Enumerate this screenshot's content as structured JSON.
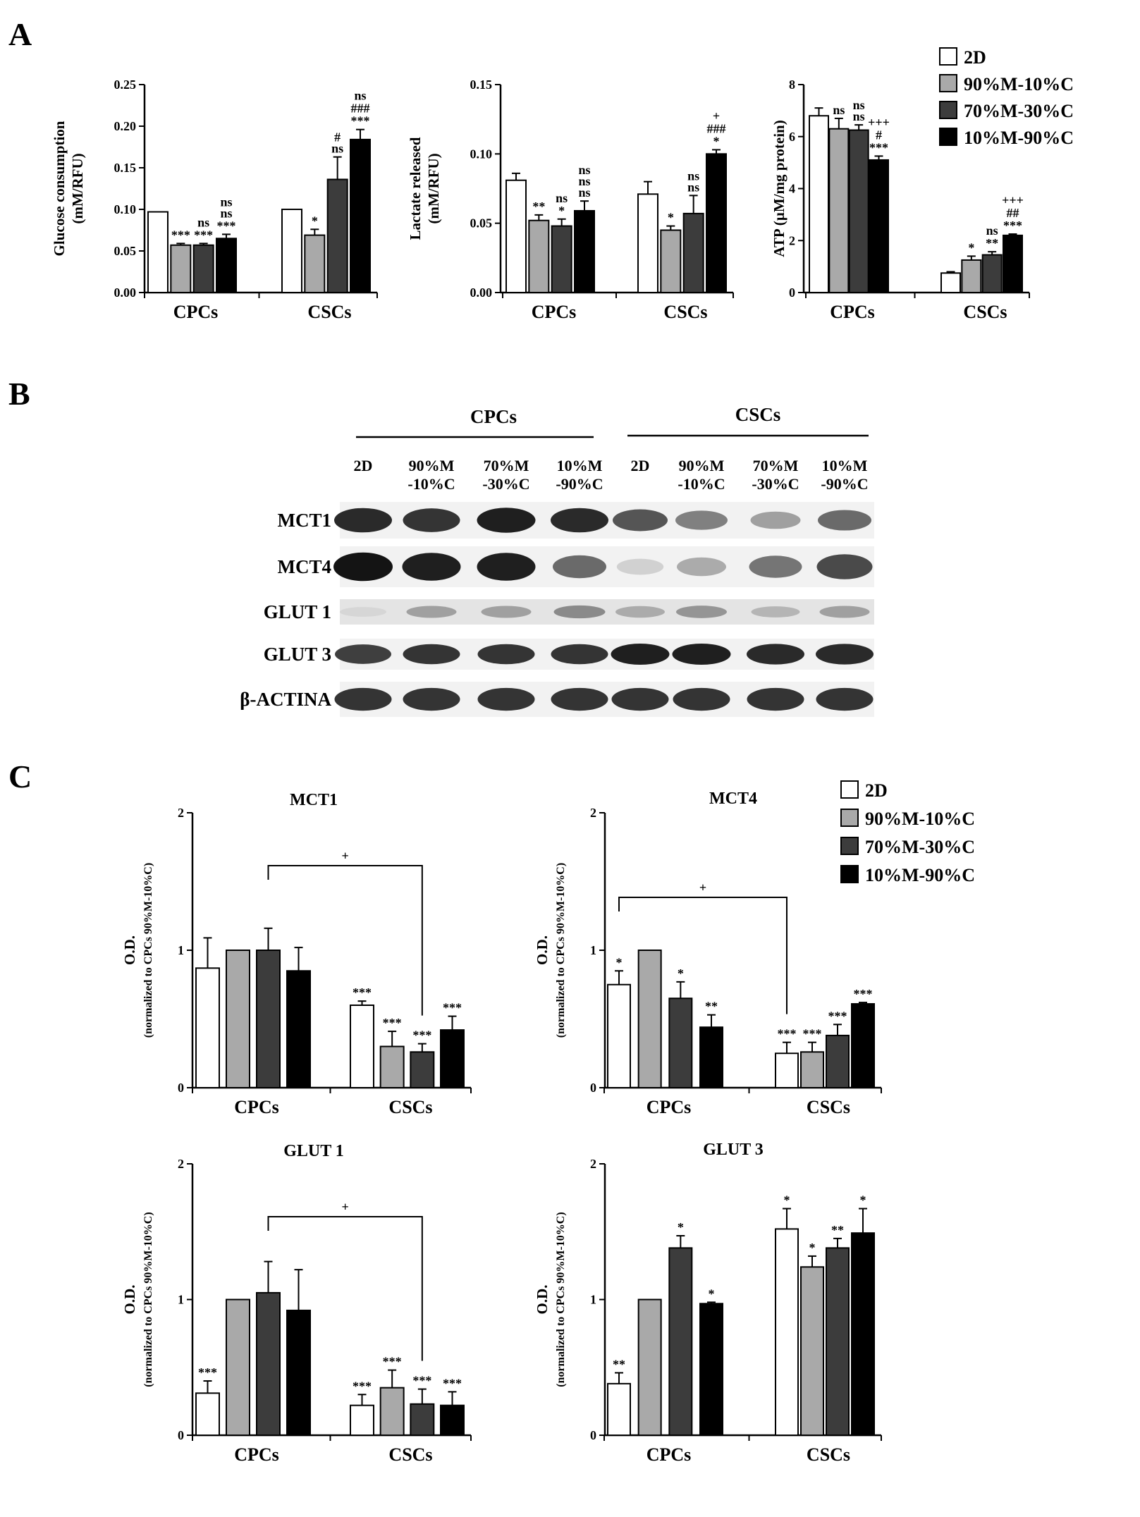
{
  "panels": {
    "A": "A",
    "B": "B",
    "C": "C"
  },
  "legend": [
    {
      "label": "2D",
      "color": "#ffffff"
    },
    {
      "label": "90%M-10%C",
      "color": "#a9a9a9"
    },
    {
      "label": "70%M-30%C",
      "color": "#3c3c3c"
    },
    {
      "label": "10%M-90%C",
      "color": "#000000"
    }
  ],
  "blot": {
    "group_headers": [
      "CPCs",
      "CSCs"
    ],
    "lanes": [
      [
        "2D",
        ""
      ],
      [
        "90%M",
        "-10%C"
      ],
      [
        "70%M",
        "-30%C"
      ],
      [
        "10%M",
        "-90%C"
      ],
      [
        "2D",
        ""
      ],
      [
        "90%M",
        "-10%C"
      ],
      [
        "70%M",
        "-30%C"
      ],
      [
        "10%M",
        "-90%C"
      ]
    ],
    "rows": [
      {
        "label": "MCT1",
        "intensity": [
          0.9,
          0.85,
          0.95,
          0.9,
          0.7,
          0.5,
          0.35,
          0.6
        ]
      },
      {
        "label": "MCT4",
        "intensity": [
          1.0,
          0.95,
          0.95,
          0.6,
          0.12,
          0.3,
          0.55,
          0.75
        ]
      },
      {
        "label": "GLUT 1",
        "intensity": [
          0.1,
          0.35,
          0.35,
          0.45,
          0.3,
          0.4,
          0.25,
          0.35
        ]
      },
      {
        "label": "GLUT 3",
        "intensity": [
          0.8,
          0.85,
          0.85,
          0.85,
          0.95,
          0.95,
          0.9,
          0.9
        ]
      },
      {
        "label": "β-ACTINA",
        "intensity": [
          0.85,
          0.85,
          0.85,
          0.85,
          0.85,
          0.85,
          0.85,
          0.85
        ]
      }
    ]
  },
  "chart_data": [
    {
      "type": "bar",
      "panel": "A",
      "title": "",
      "ylabel": [
        "Glucose consumption",
        "(mM/RFU)"
      ],
      "ylim": [
        0,
        0.25
      ],
      "yticks": [
        "0.00",
        "0.05",
        "0.10",
        "0.15",
        "0.20",
        "0.25"
      ],
      "categories": [
        "CPCs",
        "CSCs"
      ],
      "series": [
        {
          "values": [
            0.097,
            0.1
          ],
          "errors": [
            0,
            0
          ]
        },
        {
          "values": [
            0.057,
            0.069
          ],
          "errors": [
            0.002,
            0.007
          ]
        },
        {
          "values": [
            0.057,
            0.136
          ],
          "errors": [
            0.002,
            0.027
          ]
        },
        {
          "values": [
            0.065,
            0.184
          ],
          "errors": [
            0.005,
            0.012
          ]
        }
      ],
      "annotations": [
        [
          [],
          [
            "***"
          ],
          [
            "ns",
            "***"
          ],
          [
            "ns",
            "ns",
            "***"
          ]
        ],
        [
          [],
          [
            "*"
          ],
          [
            "#",
            "ns"
          ],
          [
            "ns",
            "###",
            "***"
          ]
        ]
      ]
    },
    {
      "type": "bar",
      "panel": "A",
      "title": "",
      "ylabel": [
        "Lactate released",
        "(mM/RFU)"
      ],
      "ylim": [
        0,
        0.15
      ],
      "yticks": [
        "0.00",
        "0.05",
        "0.10",
        "0.15"
      ],
      "categories": [
        "CPCs",
        "CSCs"
      ],
      "series": [
        {
          "values": [
            0.081,
            0.071
          ],
          "errors": [
            0.005,
            0.009
          ]
        },
        {
          "values": [
            0.052,
            0.045
          ],
          "errors": [
            0.004,
            0.003
          ]
        },
        {
          "values": [
            0.048,
            0.057
          ],
          "errors": [
            0.005,
            0.013
          ]
        },
        {
          "values": [
            0.059,
            0.1
          ],
          "errors": [
            0.007,
            0.003
          ]
        }
      ],
      "annotations": [
        [
          [],
          [
            "**"
          ],
          [
            "ns",
            "*"
          ],
          [
            "ns",
            "ns",
            "ns"
          ]
        ],
        [
          [],
          [
            "*"
          ],
          [
            "ns",
            "ns"
          ],
          [
            "+",
            "###",
            "*"
          ]
        ]
      ]
    },
    {
      "type": "bar",
      "panel": "A",
      "title": "",
      "ylabel": [
        "ATP (µM/mg protein)"
      ],
      "ylim": [
        0,
        8
      ],
      "yticks": [
        "0",
        "2",
        "4",
        "6",
        "8"
      ],
      "categories": [
        "CPCs",
        "CSCs"
      ],
      "series": [
        {
          "values": [
            6.8,
            0.75
          ],
          "errors": [
            0.3,
            0.05
          ]
        },
        {
          "values": [
            6.3,
            1.25
          ],
          "errors": [
            0.4,
            0.15
          ]
        },
        {
          "values": [
            6.25,
            1.45
          ],
          "errors": [
            0.2,
            0.12
          ]
        },
        {
          "values": [
            5.1,
            2.2
          ],
          "errors": [
            0.15,
            0.05
          ]
        }
      ],
      "annotations": [
        [
          [],
          [
            "ns"
          ],
          [
            "ns",
            "ns"
          ],
          [
            "+++",
            "#",
            "***"
          ]
        ],
        [
          [],
          [
            "*"
          ],
          [
            "ns",
            "**"
          ],
          [
            "+++",
            "##",
            "***"
          ]
        ]
      ]
    },
    {
      "type": "bar",
      "panel": "C",
      "title": "MCT1",
      "ylabel": [
        "O.D.",
        "(normalized to CPCs 90%M-10%C)"
      ],
      "ylim": [
        0,
        2
      ],
      "yticks": [
        "0",
        "1",
        "2"
      ],
      "categories": [
        "CPCs",
        "CSCs"
      ],
      "series": [
        {
          "values": [
            0.87,
            0.6
          ],
          "errors": [
            0.22,
            0.03
          ]
        },
        {
          "values": [
            1.0,
            0.3
          ],
          "errors": [
            0,
            0.11
          ]
        },
        {
          "values": [
            1.0,
            0.26
          ],
          "errors": [
            0.16,
            0.06
          ]
        },
        {
          "values": [
            0.85,
            0.42
          ],
          "errors": [
            0.17,
            0.1
          ]
        }
      ],
      "annotations": [
        [
          [],
          [],
          [],
          []
        ],
        [
          [
            "***"
          ],
          [
            "***"
          ],
          [
            "***"
          ],
          [
            "***"
          ]
        ]
      ],
      "bracket": {
        "from": [
          0,
          2
        ],
        "to": [
          1,
          2
        ],
        "label": "+"
      }
    },
    {
      "type": "bar",
      "panel": "C",
      "title": "MCT4",
      "ylabel": [
        "O.D.",
        "(normalized to CPCs 90%M-10%C)"
      ],
      "ylim": [
        0,
        2
      ],
      "yticks": [
        "0",
        "1",
        "2"
      ],
      "categories": [
        "CPCs",
        "CSCs"
      ],
      "series": [
        {
          "values": [
            0.75,
            0.25
          ],
          "errors": [
            0.1,
            0.08
          ]
        },
        {
          "values": [
            1.0,
            0.26
          ],
          "errors": [
            0,
            0.07
          ]
        },
        {
          "values": [
            0.65,
            0.38
          ],
          "errors": [
            0.12,
            0.08
          ]
        },
        {
          "values": [
            0.44,
            0.61
          ],
          "errors": [
            0.09,
            0.01
          ]
        }
      ],
      "annotations": [
        [
          [
            "*"
          ],
          [],
          [
            "*"
          ],
          [
            "**"
          ]
        ],
        [
          [
            "***"
          ],
          [
            "***"
          ],
          [
            "***"
          ],
          [
            "***"
          ]
        ]
      ],
      "bracket": {
        "from": [
          0,
          0
        ],
        "to": [
          1,
          0
        ],
        "label": "+"
      }
    },
    {
      "type": "bar",
      "panel": "C",
      "title": "GLUT 1",
      "ylabel": [
        "O.D.",
        "(normalized to CPCs 90%M-10%C)"
      ],
      "ylim": [
        0,
        2
      ],
      "yticks": [
        "0",
        "1",
        "2"
      ],
      "categories": [
        "CPCs",
        "CSCs"
      ],
      "series": [
        {
          "values": [
            0.31,
            0.22
          ],
          "errors": [
            0.09,
            0.08
          ]
        },
        {
          "values": [
            1.0,
            0.35
          ],
          "errors": [
            0,
            0.13
          ]
        },
        {
          "values": [
            1.05,
            0.23
          ],
          "errors": [
            0.23,
            0.11
          ]
        },
        {
          "values": [
            0.92,
            0.22
          ],
          "errors": [
            0.3,
            0.1
          ]
        }
      ],
      "annotations": [
        [
          [
            "***"
          ],
          [],
          [],
          []
        ],
        [
          [
            "***"
          ],
          [
            "***"
          ],
          [
            "***"
          ],
          [
            "***"
          ]
        ]
      ],
      "bracket": {
        "from": [
          0,
          2
        ],
        "to": [
          1,
          2
        ],
        "label": "+"
      }
    },
    {
      "type": "bar",
      "panel": "C",
      "title": "GLUT 3",
      "ylabel": [
        "O.D.",
        "(normalized to CPCs 90%M-10%C)"
      ],
      "ylim": [
        0,
        2
      ],
      "yticks": [
        "0",
        "1",
        "2"
      ],
      "categories": [
        "CPCs",
        "CSCs"
      ],
      "series": [
        {
          "values": [
            0.38,
            1.52
          ],
          "errors": [
            0.08,
            0.15
          ]
        },
        {
          "values": [
            1.0,
            1.24
          ],
          "errors": [
            0,
            0.08
          ]
        },
        {
          "values": [
            1.38,
            1.38
          ],
          "errors": [
            0.09,
            0.07
          ]
        },
        {
          "values": [
            0.97,
            1.49
          ],
          "errors": [
            0.01,
            0.18
          ]
        }
      ],
      "annotations": [
        [
          [
            "**"
          ],
          [],
          [
            "*"
          ],
          [
            "*"
          ]
        ],
        [
          [
            "*"
          ],
          [
            "*"
          ],
          [
            "**"
          ],
          [
            "*"
          ]
        ]
      ]
    }
  ]
}
